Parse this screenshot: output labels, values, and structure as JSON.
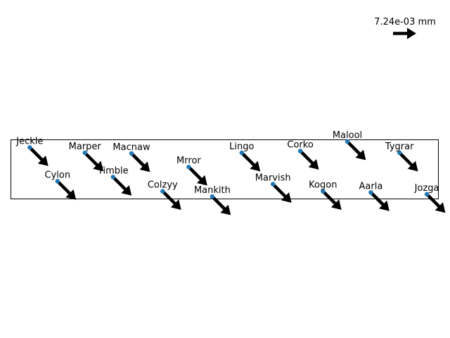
{
  "chart_data": {
    "type": "quiver",
    "title": "",
    "xlabel": "",
    "ylabel": "",
    "xlim": [
      0,
      10
    ],
    "ylim": [
      0,
      1
    ],
    "grid": false,
    "axes_visible": false,
    "point_color": "#1f77b4",
    "arrow_color": "#000000",
    "key": {
      "label": "7.24e-03 mm",
      "u": 1.0,
      "v": 0.0
    },
    "points": [
      {
        "label": "Jeckle",
        "x": 0.44,
        "y": 0.87,
        "u": 0.8,
        "v": -0.8
      },
      {
        "label": "Cylon",
        "x": 1.09,
        "y": 0.3,
        "u": 0.8,
        "v": -0.8
      },
      {
        "label": "Marper",
        "x": 1.73,
        "y": 0.78,
        "u": 0.8,
        "v": -0.8
      },
      {
        "label": "Timble",
        "x": 2.39,
        "y": 0.37,
        "u": 0.8,
        "v": -0.8
      },
      {
        "label": "Macnaw",
        "x": 2.82,
        "y": 0.77,
        "u": 0.8,
        "v": -0.8
      },
      {
        "label": "Colzyy",
        "x": 3.55,
        "y": 0.13,
        "u": 0.8,
        "v": -0.8
      },
      {
        "label": "Mrror",
        "x": 4.16,
        "y": 0.54,
        "u": 0.8,
        "v": -0.8
      },
      {
        "label": "Mankith",
        "x": 4.71,
        "y": 0.04,
        "u": 0.8,
        "v": -0.8
      },
      {
        "label": "Lingo",
        "x": 5.4,
        "y": 0.78,
        "u": 0.8,
        "v": -0.8
      },
      {
        "label": "Marvish",
        "x": 6.13,
        "y": 0.25,
        "u": 0.8,
        "v": -0.8
      },
      {
        "label": "Corko",
        "x": 6.77,
        "y": 0.81,
        "u": 0.8,
        "v": -0.8
      },
      {
        "label": "Malool",
        "x": 7.87,
        "y": 0.97,
        "u": 0.8,
        "v": -0.8
      },
      {
        "label": "Kogon",
        "x": 7.3,
        "y": 0.13,
        "u": 0.8,
        "v": -0.8
      },
      {
        "label": "Aarla",
        "x": 8.42,
        "y": 0.11,
        "u": 0.8,
        "v": -0.8
      },
      {
        "label": "Tygrar",
        "x": 9.09,
        "y": 0.78,
        "u": 0.8,
        "v": -0.8
      },
      {
        "label": "Jozga",
        "x": 9.73,
        "y": 0.08,
        "u": 0.8,
        "v": -0.8
      }
    ]
  }
}
